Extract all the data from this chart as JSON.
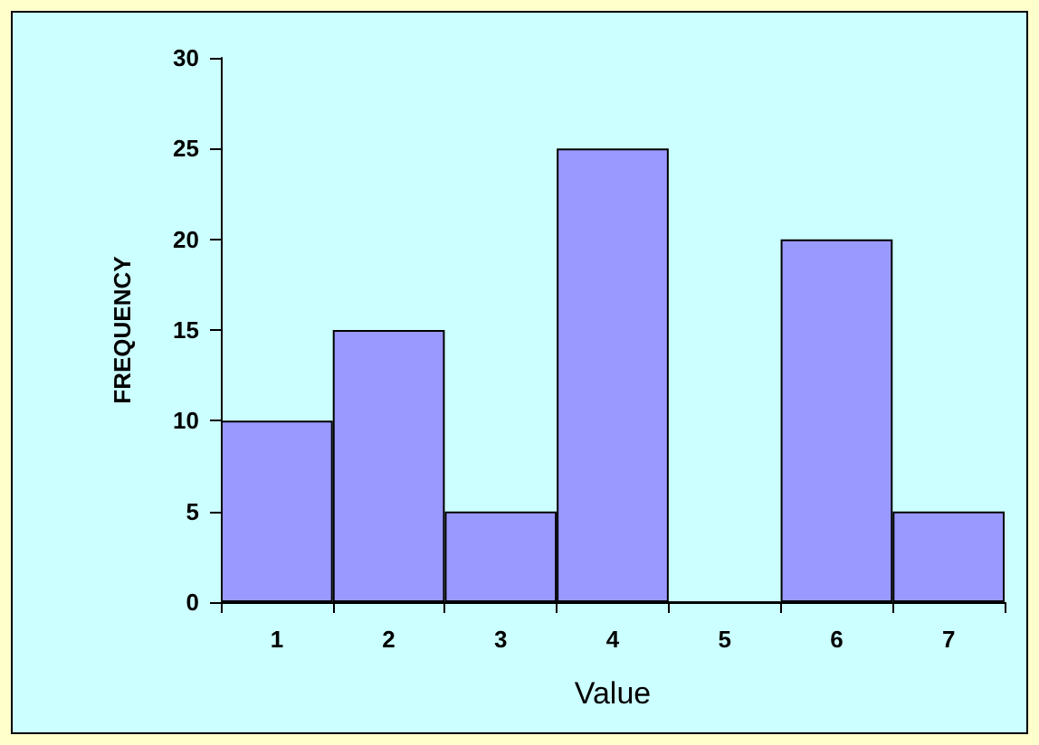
{
  "chart_data": {
    "type": "bar",
    "xlabel": "Value",
    "ylabel": "FREQUENCY",
    "categories": [
      "1",
      "2",
      "3",
      "4",
      "5",
      "6",
      "7"
    ],
    "values": [
      10,
      15,
      5,
      25,
      0,
      20,
      5
    ],
    "color": "#9999ff",
    "ylim": [
      0,
      30
    ],
    "yticks": [
      0,
      5,
      10,
      15,
      20,
      25,
      30
    ],
    "grid": false
  }
}
